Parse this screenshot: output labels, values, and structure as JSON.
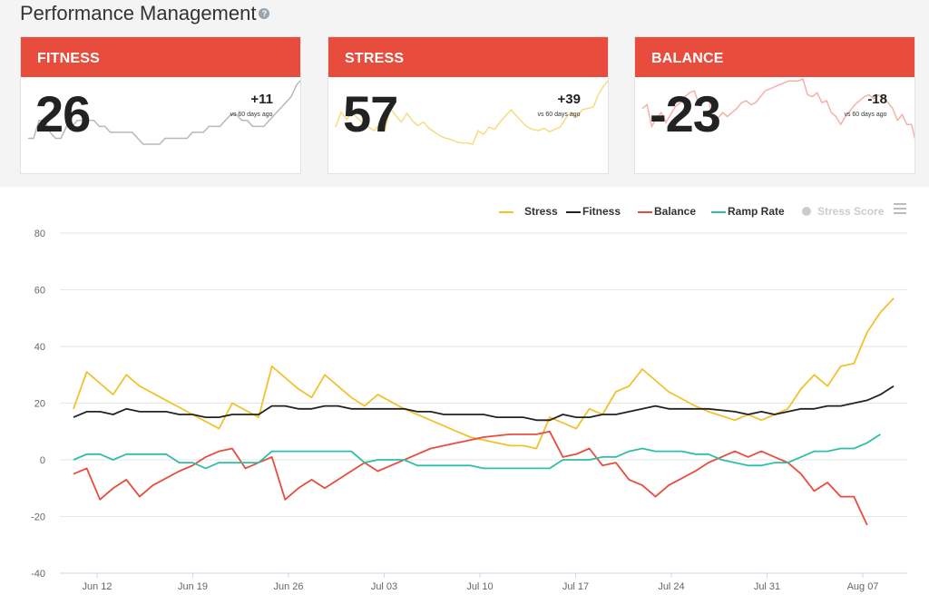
{
  "header": {
    "title": "Performance Management",
    "help_icon": "?"
  },
  "cards": [
    {
      "title": "FITNESS",
      "value": "26",
      "delta": "+11",
      "delta_sub": "vs 60 days ago",
      "color": "#b8b8b8",
      "spark": [
        16,
        16,
        19,
        19,
        17,
        16,
        16,
        18,
        18,
        19,
        19,
        19,
        19,
        18,
        18,
        17,
        17,
        17,
        17,
        17,
        16,
        15,
        15,
        15,
        15,
        16,
        16,
        16,
        16,
        16,
        17,
        17,
        17,
        18,
        18,
        18,
        19,
        20,
        20,
        19,
        19,
        18,
        18,
        18,
        19,
        20,
        21,
        22,
        23,
        25,
        26
      ]
    },
    {
      "title": "STRESS",
      "value": "57",
      "delta": "+39",
      "delta_sub": "vs 60 days ago",
      "color": "#f6dc7e",
      "spark": [
        18,
        30,
        24,
        30,
        25,
        21,
        18,
        15,
        20,
        16,
        33,
        27,
        22,
        29,
        23,
        19,
        22,
        17,
        14,
        11,
        9,
        8,
        6,
        5,
        5,
        4,
        15,
        12,
        18,
        16,
        22,
        27,
        32,
        27,
        22,
        18,
        16,
        15,
        17,
        14,
        16,
        18,
        25,
        30,
        26,
        32,
        33,
        34,
        45,
        52,
        57
      ]
    },
    {
      "title": "BALANCE",
      "value": "-23",
      "delta": "-18",
      "delta_sub": "vs 60 days ago",
      "color": "#f5b1a9",
      "spark": [
        -5,
        -3,
        -14,
        -10,
        -7,
        -12,
        -8,
        -4,
        -2,
        1,
        3,
        4,
        -3,
        -1,
        1,
        -13,
        -10,
        -7,
        -9,
        -7,
        -5,
        -2,
        -1,
        -3,
        -2,
        1,
        4,
        5,
        6,
        7,
        8,
        9,
        9,
        9,
        10,
        2,
        1,
        3,
        -2,
        -1,
        -7,
        -9,
        -13,
        -9,
        -6,
        -3,
        -1,
        1,
        2,
        0,
        2,
        0,
        -2,
        -5,
        -11,
        -8,
        -13,
        -13,
        -23
      ]
    }
  ],
  "legend": [
    {
      "name": "Stress",
      "color": "#f2c12e",
      "type": "line"
    },
    {
      "name": "Fitness",
      "color": "#222222",
      "type": "line"
    },
    {
      "name": "Balance",
      "color": "#e84c3d",
      "type": "line"
    },
    {
      "name": "Ramp Rate",
      "color": "#2ebfa5",
      "type": "line"
    },
    {
      "name": "Stress Score",
      "color": "#cccccc",
      "type": "dot",
      "disabled": true
    }
  ],
  "chart_data": {
    "type": "line",
    "x_tick_labels": [
      "Jun 12",
      "Jun 19",
      "Jun 26",
      "Jul 03",
      "Jul 10",
      "Jul 17",
      "Jul 24",
      "Jul 31",
      "Aug 07"
    ],
    "x_tick_days": [
      2,
      9,
      16,
      23,
      30,
      37,
      44,
      51,
      58
    ],
    "x_range_days": [
      0,
      59
    ],
    "ylim": [
      -40,
      80
    ],
    "y_ticks": [
      -40,
      -20,
      0,
      20,
      40,
      60,
      80
    ],
    "grid": true,
    "legend_position": "top-right",
    "series": [
      {
        "name": "Stress",
        "color": "#f2c12e",
        "points": [
          [
            0,
            18
          ],
          [
            1,
            31
          ],
          [
            3,
            23
          ],
          [
            4,
            30
          ],
          [
            5,
            26
          ],
          [
            7,
            21
          ],
          [
            9,
            16
          ],
          [
            11,
            11
          ],
          [
            12,
            20
          ],
          [
            14,
            15
          ],
          [
            15,
            33
          ],
          [
            17,
            25
          ],
          [
            18,
            22
          ],
          [
            19,
            30
          ],
          [
            21,
            22
          ],
          [
            22,
            19
          ],
          [
            23,
            23
          ],
          [
            25,
            18
          ],
          [
            27,
            14
          ],
          [
            29,
            10
          ],
          [
            30,
            8
          ],
          [
            32,
            6
          ],
          [
            33,
            5
          ],
          [
            34,
            5
          ],
          [
            35,
            4
          ],
          [
            36,
            15
          ],
          [
            38,
            11
          ],
          [
            39,
            18
          ],
          [
            40,
            16
          ],
          [
            41,
            24
          ],
          [
            42,
            26
          ],
          [
            43,
            32
          ],
          [
            45,
            24
          ],
          [
            47,
            19
          ],
          [
            48,
            17
          ],
          [
            50,
            14
          ],
          [
            51,
            16
          ],
          [
            52,
            14
          ],
          [
            53,
            16
          ],
          [
            54,
            18
          ],
          [
            55,
            25
          ],
          [
            56,
            30
          ],
          [
            57,
            26
          ],
          [
            58,
            33
          ],
          [
            59,
            34
          ],
          [
            60,
            45
          ],
          [
            61,
            52
          ],
          [
            62,
            57
          ]
        ]
      },
      {
        "name": "Fitness",
        "color": "#222222",
        "points": [
          [
            0,
            15
          ],
          [
            1,
            17
          ],
          [
            2,
            17
          ],
          [
            3,
            16
          ],
          [
            4,
            18
          ],
          [
            5,
            17
          ],
          [
            7,
            17
          ],
          [
            8,
            16
          ],
          [
            9,
            16
          ],
          [
            10,
            15
          ],
          [
            11,
            15
          ],
          [
            12,
            16
          ],
          [
            14,
            16
          ],
          [
            15,
            19
          ],
          [
            16,
            19
          ],
          [
            17,
            18
          ],
          [
            18,
            18
          ],
          [
            19,
            19
          ],
          [
            20,
            19
          ],
          [
            21,
            18
          ],
          [
            25,
            18
          ],
          [
            26,
            17
          ],
          [
            27,
            17
          ],
          [
            28,
            16
          ],
          [
            31,
            16
          ],
          [
            32,
            15
          ],
          [
            34,
            15
          ],
          [
            35,
            14
          ],
          [
            36,
            14
          ],
          [
            37,
            16
          ],
          [
            38,
            15
          ],
          [
            39,
            15
          ],
          [
            40,
            16
          ],
          [
            41,
            16
          ],
          [
            43,
            18
          ],
          [
            44,
            19
          ],
          [
            45,
            18
          ],
          [
            48,
            18
          ],
          [
            50,
            17
          ],
          [
            51,
            16
          ],
          [
            52,
            17
          ],
          [
            53,
            16
          ],
          [
            54,
            17
          ],
          [
            55,
            18
          ],
          [
            56,
            18
          ],
          [
            57,
            19
          ],
          [
            58,
            19
          ],
          [
            59,
            20
          ],
          [
            60,
            21
          ],
          [
            61,
            23
          ],
          [
            62,
            26
          ]
        ]
      },
      {
        "name": "Balance",
        "color": "#e84c3d",
        "points": [
          [
            0,
            -5
          ],
          [
            1,
            -3
          ],
          [
            2,
            -14
          ],
          [
            3,
            -10
          ],
          [
            4,
            -7
          ],
          [
            5,
            -13
          ],
          [
            6,
            -9
          ],
          [
            8,
            -4
          ],
          [
            9,
            -2
          ],
          [
            10,
            1
          ],
          [
            11,
            3
          ],
          [
            12,
            4
          ],
          [
            13,
            -3
          ],
          [
            14,
            -1
          ],
          [
            15,
            1
          ],
          [
            16,
            -14
          ],
          [
            17,
            -10
          ],
          [
            18,
            -7
          ],
          [
            19,
            -10
          ],
          [
            20,
            -7
          ],
          [
            22,
            -1
          ],
          [
            23,
            -4
          ],
          [
            24,
            -2
          ],
          [
            26,
            2
          ],
          [
            27,
            4
          ],
          [
            29,
            6
          ],
          [
            31,
            8
          ],
          [
            33,
            9
          ],
          [
            35,
            9
          ],
          [
            36,
            10
          ],
          [
            37,
            1
          ],
          [
            38,
            2
          ],
          [
            39,
            4
          ],
          [
            40,
            -2
          ],
          [
            41,
            -1
          ],
          [
            42,
            -7
          ],
          [
            43,
            -9
          ],
          [
            44,
            -13
          ],
          [
            45,
            -9
          ],
          [
            47,
            -4
          ],
          [
            48,
            -1
          ],
          [
            50,
            3
          ],
          [
            51,
            1
          ],
          [
            52,
            3
          ],
          [
            53,
            1
          ],
          [
            54,
            -1
          ],
          [
            55,
            -5
          ],
          [
            56,
            -11
          ],
          [
            57,
            -8
          ],
          [
            58,
            -13
          ],
          [
            59,
            -13
          ],
          [
            60,
            -23
          ]
        ]
      },
      {
        "name": "Ramp Rate",
        "color": "#2ebfa5",
        "points": [
          [
            0,
            0
          ],
          [
            1,
            2
          ],
          [
            2,
            2
          ],
          [
            3,
            0
          ],
          [
            4,
            2
          ],
          [
            5,
            2
          ],
          [
            7,
            2
          ],
          [
            8,
            -1
          ],
          [
            9,
            -1
          ],
          [
            10,
            -3
          ],
          [
            11,
            -1
          ],
          [
            14,
            -1
          ],
          [
            15,
            3
          ],
          [
            16,
            3
          ],
          [
            17,
            3
          ],
          [
            21,
            3
          ],
          [
            22,
            -1
          ],
          [
            23,
            0
          ],
          [
            25,
            0
          ],
          [
            26,
            -2
          ],
          [
            30,
            -2
          ],
          [
            31,
            -3
          ],
          [
            36,
            -3
          ],
          [
            37,
            0
          ],
          [
            38,
            0
          ],
          [
            39,
            0
          ],
          [
            40,
            1
          ],
          [
            41,
            1
          ],
          [
            42,
            3
          ],
          [
            43,
            4
          ],
          [
            44,
            3
          ],
          [
            46,
            3
          ],
          [
            47,
            2
          ],
          [
            48,
            2
          ],
          [
            49,
            0
          ],
          [
            50,
            -1
          ],
          [
            51,
            -2
          ],
          [
            52,
            -2
          ],
          [
            53,
            -1
          ],
          [
            54,
            -1
          ],
          [
            55,
            1
          ],
          [
            56,
            3
          ],
          [
            57,
            3
          ],
          [
            58,
            4
          ],
          [
            59,
            4
          ],
          [
            60,
            6
          ],
          [
            61,
            9
          ]
        ]
      }
    ]
  }
}
